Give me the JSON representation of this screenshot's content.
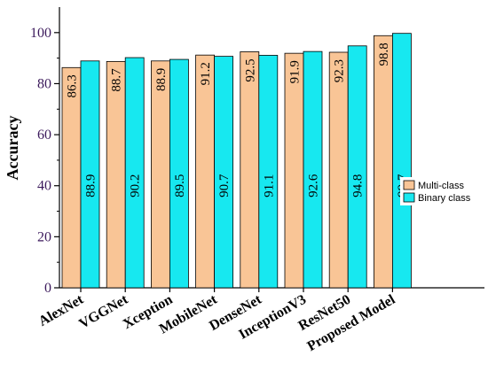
{
  "chart_data": {
    "type": "bar",
    "ylabel": "Accuracy",
    "ylim": [
      0,
      110
    ],
    "yticks": [
      0,
      20,
      40,
      60,
      80,
      100
    ],
    "categories": [
      "AlexNet",
      "VGGNet",
      "Xception",
      "MobileNet",
      "DenseNet",
      "InceptionV3",
      "ResNet50",
      "Proposed Model"
    ],
    "series": [
      {
        "name": "Multi-class",
        "color": "#f9c596",
        "values": [
          86.3,
          88.7,
          88.9,
          91.2,
          92.5,
          91.9,
          92.3,
          98.8
        ]
      },
      {
        "name": "Binary class",
        "color": "#17e8f0",
        "values": [
          88.9,
          90.2,
          89.5,
          90.7,
          91.1,
          92.6,
          94.8,
          99.7
        ]
      }
    ],
    "legend_position": "right",
    "grid": false
  }
}
